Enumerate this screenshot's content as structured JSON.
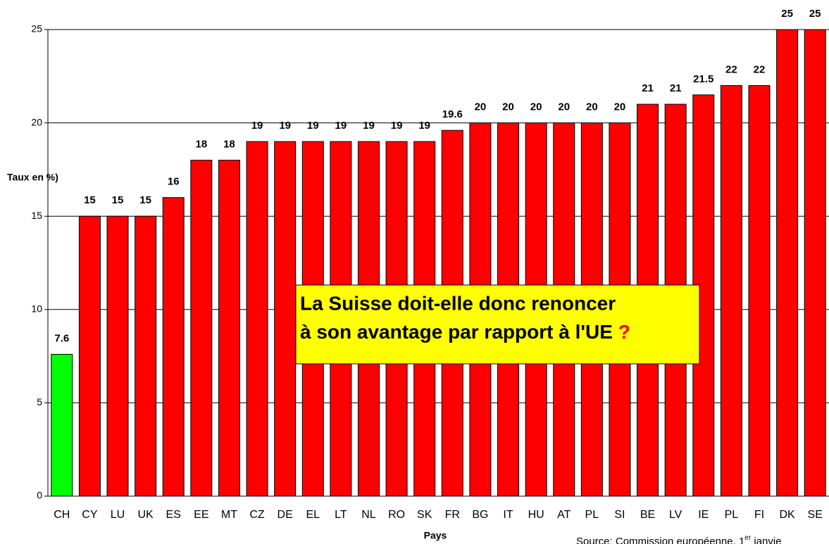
{
  "chart_data": {
    "type": "bar",
    "categories": [
      "CH",
      "CY",
      "LU",
      "UK",
      "ES",
      "EE",
      "MT",
      "CZ",
      "DE",
      "EL",
      "LT",
      "NL",
      "RO",
      "SK",
      "FR",
      "BG",
      "IT",
      "HU",
      "AT",
      "PL",
      "SI",
      "BE",
      "LV",
      "IE",
      "PL",
      "FI",
      "DK",
      "SE"
    ],
    "values": [
      7.6,
      15,
      15,
      15,
      16,
      18,
      18,
      19,
      19,
      19,
      19,
      19,
      19,
      19,
      19.6,
      20,
      20,
      20,
      20,
      20,
      20,
      21,
      21,
      21.5,
      22,
      22,
      25,
      25
    ],
    "colors": [
      "#00ff00",
      "#ff0000",
      "#ff0000",
      "#ff0000",
      "#ff0000",
      "#ff0000",
      "#ff0000",
      "#ff0000",
      "#ff0000",
      "#ff0000",
      "#ff0000",
      "#ff0000",
      "#ff0000",
      "#ff0000",
      "#ff0000",
      "#ff0000",
      "#ff0000",
      "#ff0000",
      "#ff0000",
      "#ff0000",
      "#ff0000",
      "#ff0000",
      "#ff0000",
      "#ff0000",
      "#ff0000",
      "#ff0000",
      "#ff0000",
      "#ff0000"
    ],
    "ylim": [
      0,
      25
    ],
    "yticks": [
      0,
      5,
      10,
      15,
      20,
      25
    ],
    "grid": true,
    "y_label": "Taux en %)",
    "x_label": "Pays",
    "annotation": {
      "lines": [
        "La Suisse doit-elle donc renoncer",
        "à son avantage par rapport à l'UE"
      ],
      "mark": "?"
    },
    "source": {
      "text": "Source: Commission européenne, 1",
      "superscript": "er",
      "after": " janvie"
    }
  }
}
